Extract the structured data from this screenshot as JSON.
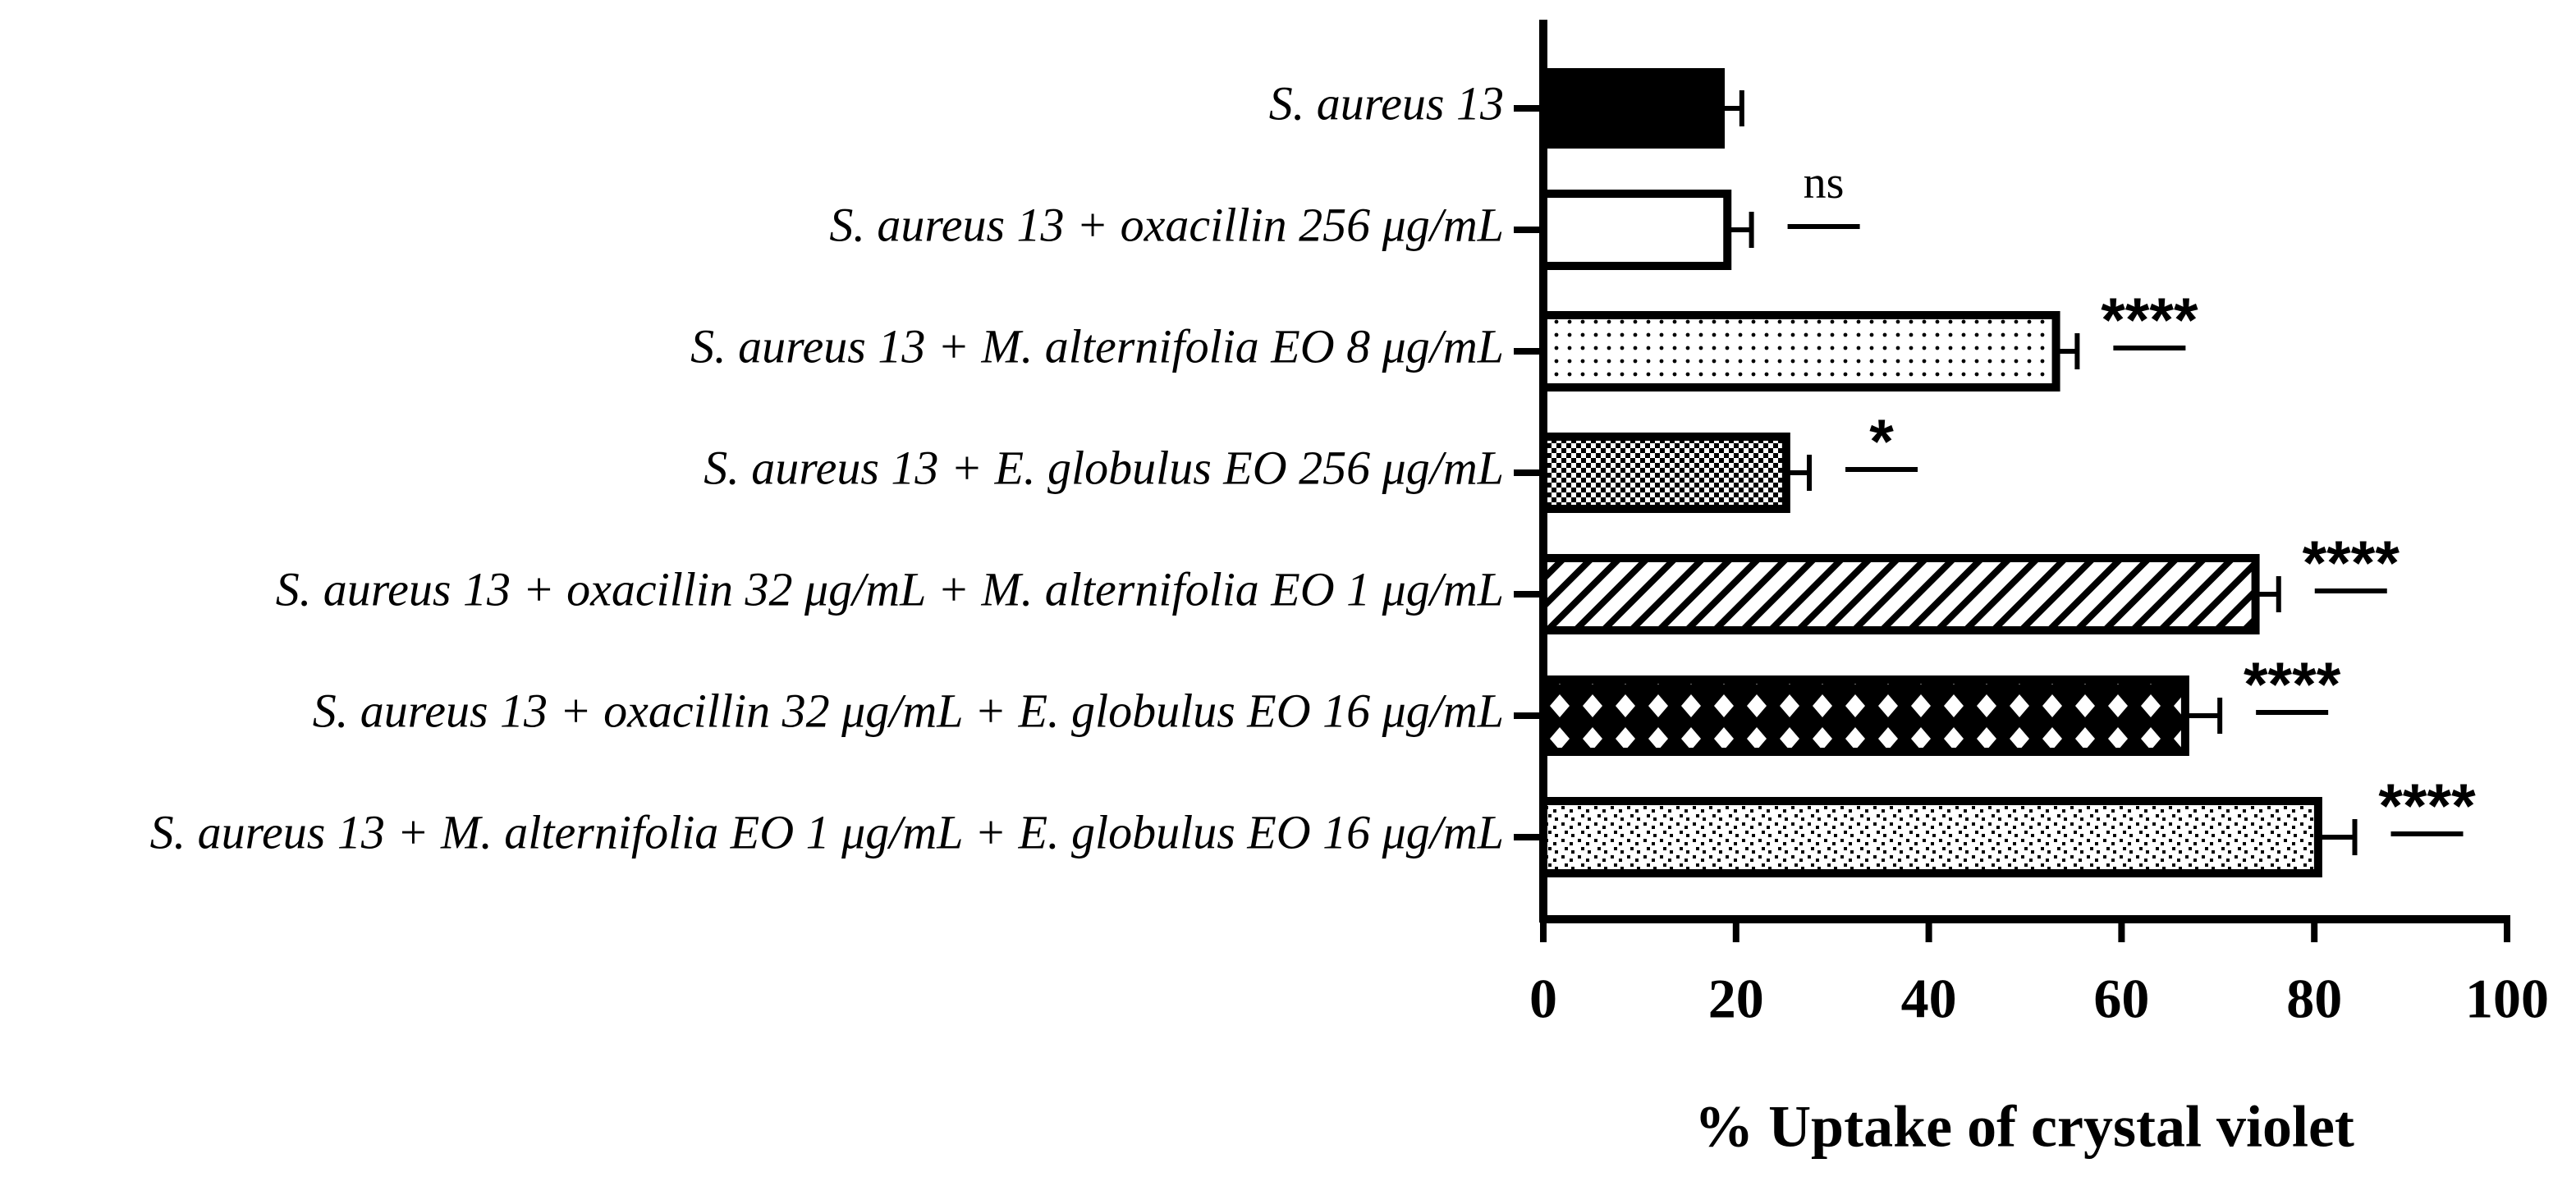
{
  "chart_data": {
    "type": "hbar",
    "x_label": "% Uptake of crystal violet",
    "categories": [
      "S. aureus 13",
      "S. aureus 13 + oxacillin 256 μg/mL",
      "S. aureus 13 + M. alternifolia EO 8 μg/mL",
      "S. aureus 13 + E. globulus EO 256 μg/mL",
      "S. aureus 13 + oxacillin 32 μg/mL + M. alternifolia EO 1 μg/mL",
      "S. aureus 13 + oxacillin 32 μg/mL + E. globulus EO 16 μg/mL",
      "S. aureus 13 + M. alternifolia EO 1 μg/mL + E. globulus EO 16 μg/mL"
    ],
    "values": [
      18.4,
      19.1,
      53.2,
      25.2,
      73.9,
      66.6,
      80.4
    ],
    "errors": [
      2.2,
      2.5,
      2.2,
      2.4,
      2.4,
      3.6,
      3.8
    ],
    "significance": [
      null,
      "ns",
      "****",
      "*",
      "****",
      "****",
      "****"
    ],
    "patterns": [
      "solid",
      "none",
      "dots",
      "checker",
      "diagonal",
      "diamonds",
      "confetti"
    ],
    "color": "#000000",
    "xlim": [
      0,
      100
    ],
    "xticks": [
      0,
      20,
      40,
      60,
      80,
      100
    ]
  }
}
